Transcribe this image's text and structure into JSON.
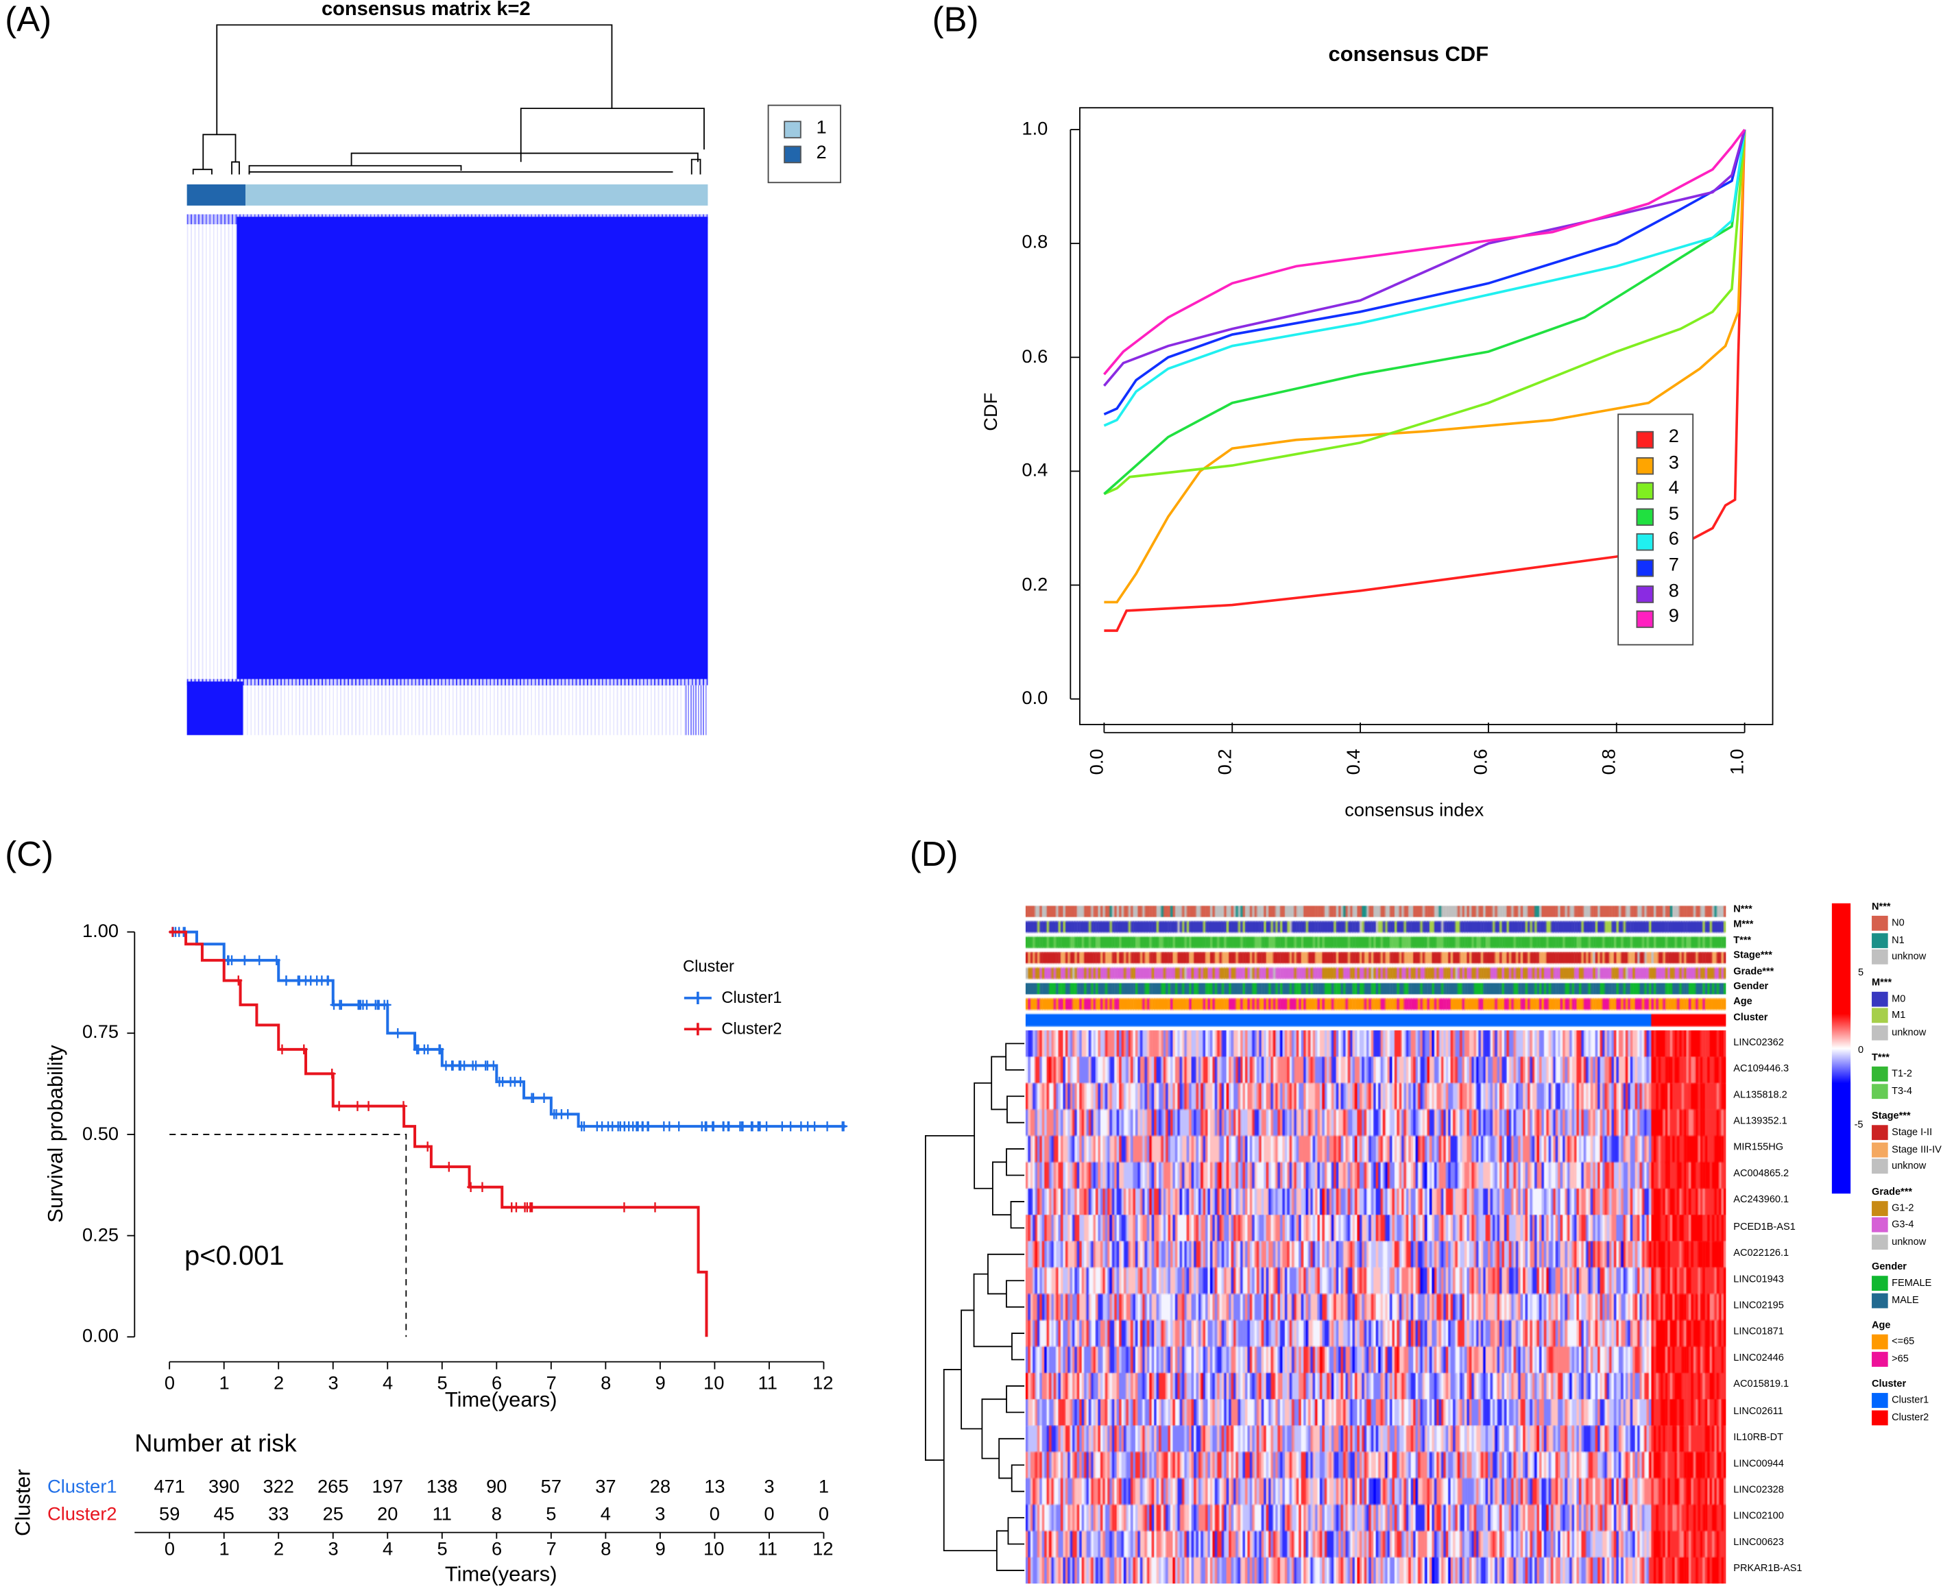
{
  "panels": {
    "a": "(A)",
    "b": "(B)",
    "c": "(C)",
    "d": "(D)"
  },
  "panel_a": {
    "title": "consensus matrix k=2",
    "legend": [
      {
        "label": "1",
        "color": "#9ecae1"
      },
      {
        "label": "2",
        "color": "#2166ac"
      }
    ],
    "matrix_color": "#1414ff"
  },
  "chart_data": [
    {
      "type": "line",
      "title": "consensus CDF",
      "xlabel": "consensus index",
      "ylabel": "CDF",
      "xlim": [
        0,
        1
      ],
      "ylim": [
        0,
        1
      ],
      "xticks": [
        "0.0",
        "0.2",
        "0.4",
        "0.6",
        "0.8",
        "1.0"
      ],
      "yticks": [
        "0.0",
        "0.2",
        "0.4",
        "0.6",
        "0.8",
        "1.0"
      ],
      "legend_placement": "right",
      "series": [
        {
          "name": "2",
          "color": "#ff2020",
          "points": [
            [
              0,
              0.12
            ],
            [
              0.02,
              0.12
            ],
            [
              0.035,
              0.155
            ],
            [
              0.2,
              0.165
            ],
            [
              0.4,
              0.19
            ],
            [
              0.6,
              0.22
            ],
            [
              0.8,
              0.25
            ],
            [
              0.9,
              0.27
            ],
            [
              0.95,
              0.3
            ],
            [
              0.97,
              0.34
            ],
            [
              0.985,
              0.35
            ],
            [
              0.99,
              0.6
            ],
            [
              1,
              1
            ]
          ]
        },
        {
          "name": "3",
          "color": "#ffa500",
          "points": [
            [
              0,
              0.17
            ],
            [
              0.02,
              0.17
            ],
            [
              0.05,
              0.22
            ],
            [
              0.1,
              0.32
            ],
            [
              0.15,
              0.4
            ],
            [
              0.2,
              0.44
            ],
            [
              0.3,
              0.455
            ],
            [
              0.5,
              0.47
            ],
            [
              0.7,
              0.49
            ],
            [
              0.85,
              0.52
            ],
            [
              0.93,
              0.58
            ],
            [
              0.97,
              0.62
            ],
            [
              0.99,
              0.68
            ],
            [
              1,
              1
            ]
          ]
        },
        {
          "name": "4",
          "color": "#80ee20",
          "points": [
            [
              0,
              0.36
            ],
            [
              0.02,
              0.37
            ],
            [
              0.04,
              0.39
            ],
            [
              0.2,
              0.41
            ],
            [
              0.4,
              0.45
            ],
            [
              0.6,
              0.52
            ],
            [
              0.8,
              0.61
            ],
            [
              0.9,
              0.65
            ],
            [
              0.95,
              0.68
            ],
            [
              0.98,
              0.72
            ],
            [
              1,
              1
            ]
          ]
        },
        {
          "name": "5",
          "color": "#20e040",
          "points": [
            [
              0,
              0.36
            ],
            [
              0.03,
              0.39
            ],
            [
              0.1,
              0.46
            ],
            [
              0.2,
              0.52
            ],
            [
              0.4,
              0.57
            ],
            [
              0.6,
              0.61
            ],
            [
              0.75,
              0.67
            ],
            [
              0.85,
              0.74
            ],
            [
              0.95,
              0.81
            ],
            [
              0.98,
              0.83
            ],
            [
              1,
              1
            ]
          ]
        },
        {
          "name": "6",
          "color": "#20f0f0",
          "points": [
            [
              0,
              0.48
            ],
            [
              0.02,
              0.49
            ],
            [
              0.05,
              0.54
            ],
            [
              0.1,
              0.58
            ],
            [
              0.2,
              0.62
            ],
            [
              0.4,
              0.66
            ],
            [
              0.6,
              0.71
            ],
            [
              0.8,
              0.76
            ],
            [
              0.95,
              0.81
            ],
            [
              0.98,
              0.84
            ],
            [
              1,
              1
            ]
          ]
        },
        {
          "name": "7",
          "color": "#1030ff",
          "points": [
            [
              0,
              0.5
            ],
            [
              0.02,
              0.51
            ],
            [
              0.05,
              0.56
            ],
            [
              0.1,
              0.6
            ],
            [
              0.2,
              0.64
            ],
            [
              0.4,
              0.68
            ],
            [
              0.6,
              0.73
            ],
            [
              0.8,
              0.8
            ],
            [
              0.9,
              0.86
            ],
            [
              0.98,
              0.91
            ],
            [
              1,
              1
            ]
          ]
        },
        {
          "name": "8",
          "color": "#8a2be2",
          "points": [
            [
              0,
              0.55
            ],
            [
              0.03,
              0.59
            ],
            [
              0.1,
              0.62
            ],
            [
              0.2,
              0.65
            ],
            [
              0.4,
              0.7
            ],
            [
              0.5,
              0.75
            ],
            [
              0.6,
              0.8
            ],
            [
              0.8,
              0.85
            ],
            [
              0.95,
              0.89
            ],
            [
              0.98,
              0.92
            ],
            [
              1,
              1
            ]
          ]
        },
        {
          "name": "9",
          "color": "#ff20c0",
          "points": [
            [
              0,
              0.57
            ],
            [
              0.03,
              0.61
            ],
            [
              0.1,
              0.67
            ],
            [
              0.2,
              0.73
            ],
            [
              0.3,
              0.76
            ],
            [
              0.5,
              0.79
            ],
            [
              0.7,
              0.82
            ],
            [
              0.85,
              0.87
            ],
            [
              0.95,
              0.93
            ],
            [
              0.98,
              0.97
            ],
            [
              1,
              1
            ]
          ]
        }
      ]
    },
    {
      "type": "line",
      "title": "",
      "xlabel": "Time(years)",
      "ylabel": "Survival probability",
      "xlim": [
        0,
        12.5
      ],
      "ylim": [
        0,
        1
      ],
      "xticks": [
        "0",
        "1",
        "2",
        "3",
        "4",
        "5",
        "6",
        "7",
        "8",
        "9",
        "10",
        "11",
        "12"
      ],
      "yticks": [
        "0.00",
        "0.25",
        "0.50",
        "0.75",
        "1.00"
      ],
      "legend_title": "Cluster",
      "legend_placement": "top-right",
      "annotation": "p<0.001",
      "median_time_cluster2": 4.34,
      "series": [
        {
          "name": "Cluster1",
          "color": "#1f6fe8",
          "steps": [
            [
              0,
              1
            ],
            [
              0.5,
              0.97
            ],
            [
              1,
              0.93
            ],
            [
              2,
              0.88
            ],
            [
              3,
              0.82
            ],
            [
              4,
              0.75
            ],
            [
              4.5,
              0.71
            ],
            [
              5,
              0.67
            ],
            [
              6,
              0.63
            ],
            [
              6.5,
              0.59
            ],
            [
              7,
              0.55
            ],
            [
              7.5,
              0.52
            ],
            [
              12.4,
              0.52
            ]
          ]
        },
        {
          "name": "Cluster2",
          "color": "#e8141e",
          "steps": [
            [
              0,
              1
            ],
            [
              0.3,
              0.97
            ],
            [
              0.6,
              0.93
            ],
            [
              1,
              0.88
            ],
            [
              1.3,
              0.82
            ],
            [
              1.6,
              0.77
            ],
            [
              2,
              0.71
            ],
            [
              2.5,
              0.65
            ],
            [
              3,
              0.57
            ],
            [
              4.3,
              0.52
            ],
            [
              4.5,
              0.47
            ],
            [
              4.8,
              0.42
            ],
            [
              5.5,
              0.37
            ],
            [
              6.1,
              0.32
            ],
            [
              9.7,
              0.16
            ],
            [
              9.85,
              0
            ]
          ]
        }
      ],
      "risk_table": {
        "title": "Number at risk",
        "ylabel": "Cluster",
        "xlabel": "Time(years)",
        "rows": [
          {
            "name": "Cluster1",
            "color": "#1f6fe8",
            "values": [
              "471",
              "390",
              "322",
              "265",
              "197",
              "138",
              "90",
              "57",
              "37",
              "28",
              "13",
              "3",
              "1"
            ]
          },
          {
            "name": "Cluster2",
            "color": "#e8141e",
            "values": [
              "59",
              "45",
              "33",
              "25",
              "20",
              "11",
              "8",
              "5",
              "4",
              "3",
              "0",
              "0",
              "0"
            ]
          }
        ]
      }
    },
    {
      "type": "heatmap",
      "genes": [
        "LINC02362",
        "AC109446.3",
        "AL135818.2",
        "AL139352.1",
        "MIR155HG",
        "AC004865.2",
        "AC243960.1",
        "PCED1B-AS1",
        "AC022126.1",
        "LINC01943",
        "LINC02195",
        "LINC01871",
        "LINC02446",
        "AC015819.1",
        "LINC02611",
        "IL10RB-DT",
        "LINC00944",
        "LINC02328",
        "LINC02100",
        "LINC00623",
        "PRKAR1B-AS1"
      ],
      "annotations": [
        "N***",
        "M***",
        "T***",
        "Stage***",
        "Grade***",
        "Gender",
        "Age",
        "Cluster"
      ],
      "colorbar_ticks": [
        "5",
        "0",
        "-5"
      ],
      "legends": [
        {
          "title": "N***",
          "items": [
            {
              "label": "N0",
              "color": "#d6604d"
            },
            {
              "label": "N1",
              "color": "#1b9088"
            },
            {
              "label": "unknow",
              "color": "#c0c0c0"
            }
          ]
        },
        {
          "title": "M***",
          "items": [
            {
              "label": "M0",
              "color": "#3838c0"
            },
            {
              "label": "M1",
              "color": "#a6cf4a"
            },
            {
              "label": "unknow",
              "color": "#c0c0c0"
            }
          ]
        },
        {
          "title": "T***",
          "items": [
            {
              "label": "T1-2",
              "color": "#33b833"
            },
            {
              "label": "T3-4",
              "color": "#66cc55"
            }
          ]
        },
        {
          "title": "Stage***",
          "items": [
            {
              "label": "Stage I-II",
              "color": "#cc2222"
            },
            {
              "label": "Stage III-IV",
              "color": "#f4a860"
            },
            {
              "label": "unknow",
              "color": "#c0c0c0"
            }
          ]
        },
        {
          "title": "Grade***",
          "items": [
            {
              "label": "G1-2",
              "color": "#c88a14"
            },
            {
              "label": "G3-4",
              "color": "#d660d6"
            },
            {
              "label": "unknow",
              "color": "#c0c0c0"
            }
          ]
        },
        {
          "title": "Gender",
          "items": [
            {
              "label": "FEMALE",
              "color": "#10b830"
            },
            {
              "label": "MALE",
              "color": "#226a90"
            }
          ]
        },
        {
          "title": "Age",
          "items": [
            {
              "label": "<=65",
              "color": "#ff9900"
            },
            {
              "label": ">65",
              "color": "#ee1199"
            }
          ]
        },
        {
          "title": "Cluster",
          "items": [
            {
              "label": "Cluster1",
              "color": "#0066ff"
            },
            {
              "label": "Cluster2",
              "color": "#ff0000"
            }
          ]
        }
      ]
    }
  ]
}
